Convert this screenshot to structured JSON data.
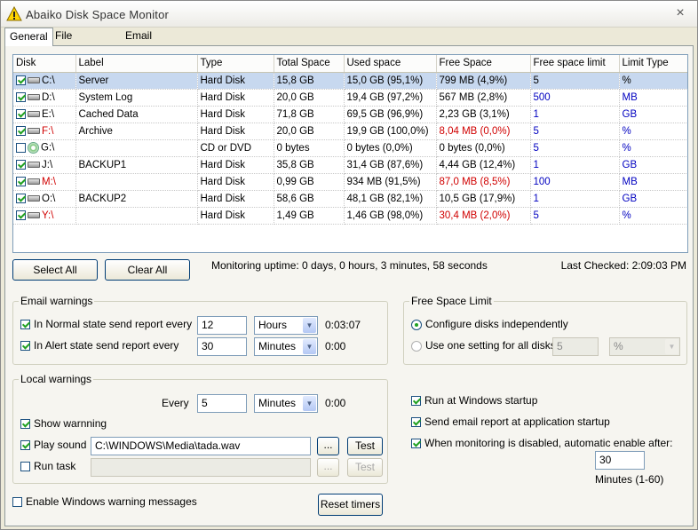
{
  "window": {
    "title": "Abaiko Disk Space Monitor",
    "close": "×"
  },
  "tabs": [
    "General",
    "File Size Chart",
    "Email settings"
  ],
  "grid": {
    "headers": [
      "Disk",
      "Label",
      "Type",
      "Total Space",
      "Used space",
      "Free Space",
      "Free space limit",
      "Limit Type"
    ],
    "rows": [
      {
        "disk": "C:\\",
        "label": "Server",
        "type": "Hard Disk",
        "total": "15,8 GB",
        "used": "15,0 GB (95,1%)",
        "free": "799 MB (4,9%)",
        "limit": "5",
        "limit_type": "%"
      },
      {
        "disk": "D:\\",
        "label": "System Log",
        "type": "Hard Disk",
        "total": "20,0 GB",
        "used": "19,4 GB (97,2%)",
        "free": "567 MB (2,8%)",
        "limit": "500",
        "limit_type": "MB"
      },
      {
        "disk": "E:\\",
        "label": "Cached Data",
        "type": "Hard Disk",
        "total": "71,8 GB",
        "used": "69,5 GB (96,9%)",
        "free": "2,23 GB (3,1%)",
        "limit": "1",
        "limit_type": "GB"
      },
      {
        "disk": "F:\\",
        "label": "Archive",
        "type": "Hard Disk",
        "total": "20,0 GB",
        "used": "19,9 GB (100,0%)",
        "free": "8,04 MB (0,0%)",
        "limit": "5",
        "limit_type": "%"
      },
      {
        "disk": "G:\\",
        "label": "",
        "type": "CD or DVD",
        "total": "0 bytes",
        "used": "0 bytes (0,0%)",
        "free": "0 bytes (0,0%)",
        "limit": "5",
        "limit_type": "%"
      },
      {
        "disk": "J:\\",
        "label": "BACKUP1",
        "type": "Hard Disk",
        "total": "35,8 GB",
        "used": "31,4 GB (87,6%)",
        "free": "4,44 GB (12,4%)",
        "limit": "1",
        "limit_type": "GB"
      },
      {
        "disk": "M:\\",
        "label": "",
        "type": "Hard Disk",
        "total": "0,99 GB",
        "used": "934 MB (91,5%)",
        "free": "87,0 MB (8,5%)",
        "limit": "100",
        "limit_type": "MB"
      },
      {
        "disk": "O:\\",
        "label": "BACKUP2",
        "type": "Hard Disk",
        "total": "58,6 GB",
        "used": "48,1 GB (82,1%)",
        "free": "10,5 GB (17,9%)",
        "limit": "1",
        "limit_type": "GB"
      },
      {
        "disk": "Y:\\",
        "label": "",
        "type": "Hard Disk",
        "total": "1,49 GB",
        "used": "1,46 GB (98,0%)",
        "free": "30,4 MB (2,0%)",
        "limit": "5",
        "limit_type": "%"
      }
    ]
  },
  "buttons": {
    "select_all": "Select All",
    "clear_all": "Clear All",
    "reset_timers": "Reset timers",
    "browse": "...",
    "test": "Test"
  },
  "status": {
    "uptime": "Monitoring uptime: 0 days, 0 hours, 3 minutes, 58 seconds",
    "last_checked": "Last Checked: 2:09:03 PM"
  },
  "email_warnings": {
    "title": "Email warnings",
    "normal_label": "In Normal state send report every",
    "normal_value": "12",
    "normal_unit": "Hours",
    "normal_time": "0:03:07",
    "alert_label": "In Alert state send report every",
    "alert_value": "30",
    "alert_unit": "Minutes",
    "alert_time": "0:00"
  },
  "free_space_limit": {
    "title": "Free Space Limit",
    "opt1": "Configure disks independently",
    "opt2": "Use one setting for all disks",
    "value": "5",
    "unit": "%"
  },
  "local_warnings": {
    "title": "Local warnings",
    "every_label": "Every",
    "every_value": "5",
    "every_unit": "Minutes",
    "every_time": "0:00",
    "show_warning": "Show warnning",
    "play_sound": "Play sound",
    "sound_path": "C:\\WINDOWS\\Media\\tada.wav",
    "run_task": "Run task",
    "task_path": ""
  },
  "options": {
    "startup": "Run at Windows startup",
    "email_startup": "Send email report at application startup",
    "auto_enable": "When monitoring is disabled, automatic enable after:",
    "auto_value": "30",
    "auto_unit": "Minutes (1-60)"
  },
  "enable_messages": "Enable Windows warning messages"
}
